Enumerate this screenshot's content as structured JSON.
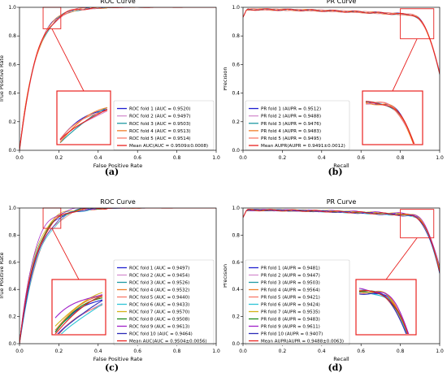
{
  "chart_data": [
    {
      "panel": "(a)",
      "type": "line",
      "title": "ROC Curve",
      "xlabel": "False Positive Rate",
      "ylabel": "True Positive Rate",
      "xlim": [
        0,
        1
      ],
      "ylim": [
        0,
        1
      ],
      "xticks": [
        "0.0",
        "0.2",
        "0.4",
        "0.6",
        "0.8",
        "1.0"
      ],
      "yticks": [
        "0.0",
        "0.2",
        "0.4",
        "0.6",
        "0.8",
        "1.0"
      ],
      "grid": false,
      "legend": "lower-right",
      "kind": "roc",
      "inset": {
        "zoom_x": [
          0.12,
          0.21
        ],
        "zoom_y": [
          0.85,
          1.0
        ]
      },
      "series": [
        {
          "name": "ROC fold 1 (AUC = 0.9520)",
          "color": "#1f1fd0",
          "auc": 0.952
        },
        {
          "name": "ROC fold 2 (AUC = 0.9497)",
          "color": "#d58fcf",
          "auc": 0.9497
        },
        {
          "name": "ROC fold 3 (AUC = 0.9503)",
          "color": "#1f9aa3",
          "auc": 0.9503
        },
        {
          "name": "ROC fold 4 (AUC = 0.9513)",
          "color": "#f07f29",
          "auc": 0.9513
        },
        {
          "name": "ROC fold 5 (AUC = 0.9514)",
          "color": "#f77a6a",
          "auc": 0.9514
        },
        {
          "name": "Mean AUC(AUC = 0.9509±0.0008)",
          "color": "#e8211f",
          "auc": 0.9509,
          "mean": true
        }
      ]
    },
    {
      "panel": "(b)",
      "type": "line",
      "title": "PR Curve",
      "xlabel": "Recall",
      "ylabel": "Precision",
      "xlim": [
        0,
        1
      ],
      "ylim": [
        0,
        1
      ],
      "xticks": [
        "0.0",
        "0.2",
        "0.4",
        "0.6",
        "0.8",
        "1.0"
      ],
      "yticks": [
        "0.0",
        "0.2",
        "0.4",
        "0.6",
        "0.8",
        "1.0"
      ],
      "grid": false,
      "legend": "lower-left",
      "kind": "pr",
      "inset": {
        "zoom_x": [
          0.8,
          0.97
        ],
        "zoom_y": [
          0.78,
          0.99
        ]
      },
      "series": [
        {
          "name": "PR fold 1 (AUPR = 0.9512)",
          "color": "#1f1fd0",
          "auc": 0.9512
        },
        {
          "name": "PR fold 2 (AUPR = 0.9488)",
          "color": "#d58fcf",
          "auc": 0.9488
        },
        {
          "name": "PR fold 3 (AUPR = 0.9476)",
          "color": "#1f9aa3",
          "auc": 0.9476
        },
        {
          "name": "PR fold 4 (AUPR = 0.9483)",
          "color": "#f07f29",
          "auc": 0.9483
        },
        {
          "name": "PR fold 5 (AUPR = 0.9495)",
          "color": "#f77a6a",
          "auc": 0.9495
        },
        {
          "name": "Mean AUPR(AUPR = 0.9491±0.0012)",
          "color": "#e8211f",
          "auc": 0.9491,
          "mean": true
        }
      ]
    },
    {
      "panel": "(c)",
      "type": "line",
      "title": "ROC Curve",
      "xlabel": "False Positive Rate",
      "ylabel": "True Positive Rate",
      "xlim": [
        0,
        1
      ],
      "ylim": [
        0,
        1
      ],
      "xticks": [
        "0.0",
        "0.2",
        "0.4",
        "0.6",
        "0.8",
        "1.0"
      ],
      "yticks": [
        "0.0",
        "0.2",
        "0.4",
        "0.6",
        "0.8",
        "1.0"
      ],
      "grid": false,
      "legend": "lower-right",
      "kind": "roc",
      "inset": {
        "zoom_x": [
          0.12,
          0.21
        ],
        "zoom_y": [
          0.85,
          1.0
        ]
      },
      "series": [
        {
          "name": "ROC fold 1 (AUC = 0.9497)",
          "color": "#1f1fd0",
          "auc": 0.9497
        },
        {
          "name": "ROC fold 2 (AUC = 0.9454)",
          "color": "#d58fcf",
          "auc": 0.9454
        },
        {
          "name": "ROC fold 3 (AUC = 0.9526)",
          "color": "#1f9aa3",
          "auc": 0.9526
        },
        {
          "name": "ROC fold 4 (AUC = 0.9532)",
          "color": "#f07f29",
          "auc": 0.9532
        },
        {
          "name": "ROC fold 5 (AUC = 0.9440)",
          "color": "#f77a6a",
          "auc": 0.944
        },
        {
          "name": "ROC fold 6 (AUC = 0.9433)",
          "color": "#2ec4d6",
          "auc": 0.9433
        },
        {
          "name": "ROC fold 7 (AUC = 0.9570)",
          "color": "#d4b21a",
          "auc": 0.957
        },
        {
          "name": "ROC fold 8 (AUC = 0.9508)",
          "color": "#1c8a1c",
          "auc": 0.9508
        },
        {
          "name": "ROC fold 9 (AUC = 0.9613)",
          "color": "#a020c8",
          "auc": 0.9613
        },
        {
          "name": "ROC fold 10 (AUC = 0.9464)",
          "color": "#2b2bb8",
          "auc": 0.9464
        },
        {
          "name": "Mean AUC(AUC = 0.9504±0.0056)",
          "color": "#e8211f",
          "auc": 0.9504,
          "mean": true
        }
      ]
    },
    {
      "panel": "(d)",
      "type": "line",
      "title": "PR Curve",
      "xlabel": "Recall",
      "ylabel": "Precision",
      "xlim": [
        0,
        1
      ],
      "ylim": [
        0,
        1
      ],
      "xticks": [
        "0.0",
        "0.2",
        "0.4",
        "0.6",
        "0.8",
        "1.0"
      ],
      "yticks": [
        "0.0",
        "0.2",
        "0.4",
        "0.6",
        "0.8",
        "1.0"
      ],
      "grid": false,
      "legend": "lower-left",
      "kind": "pr",
      "inset": {
        "zoom_x": [
          0.8,
          0.97
        ],
        "zoom_y": [
          0.78,
          0.99
        ]
      },
      "series": [
        {
          "name": "PR fold 1 (AUPR = 0.9481)",
          "color": "#1f1fd0",
          "auc": 0.9481
        },
        {
          "name": "PR fold 2 (AUPR = 0.9447)",
          "color": "#d58fcf",
          "auc": 0.9447
        },
        {
          "name": "PR fold 3 (AUPR = 0.9503)",
          "color": "#1f9aa3",
          "auc": 0.9503
        },
        {
          "name": "PR fold 4 (AUPR = 0.9564)",
          "color": "#f07f29",
          "auc": 0.9564
        },
        {
          "name": "PR fold 5 (AUPR = 0.9421)",
          "color": "#f77a6a",
          "auc": 0.9421
        },
        {
          "name": "PR fold 6 (AUPR = 0.9424)",
          "color": "#2ec4d6",
          "auc": 0.9424
        },
        {
          "name": "PR fold 7 (AUPR = 0.9535)",
          "color": "#d4b21a",
          "auc": 0.9535
        },
        {
          "name": "PR fold 8 (AUPR = 0.9483)",
          "color": "#1c8a1c",
          "auc": 0.9483
        },
        {
          "name": "PR fold 9 (AUPR = 0.9611)",
          "color": "#a020c8",
          "auc": 0.9611
        },
        {
          "name": "PR fold 10 (AUPR = 0.9407)",
          "color": "#2b2bb8",
          "auc": 0.9407
        },
        {
          "name": "Mean AUPR(AUPR = 0.9488±0.0063)",
          "color": "#e8211f",
          "auc": 0.9488,
          "mean": true
        }
      ]
    }
  ],
  "captions": {
    "a": "(a)",
    "b": "(b)",
    "c": "(c)",
    "d": "(d)"
  }
}
